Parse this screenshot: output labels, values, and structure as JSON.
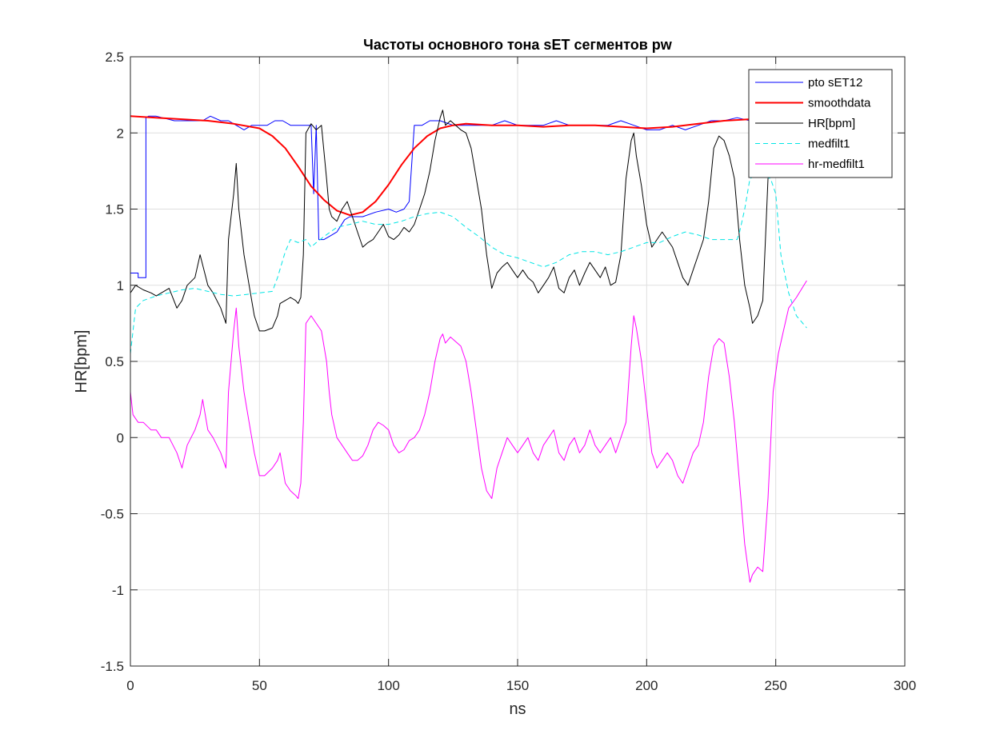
{
  "chart_data": {
    "type": "line",
    "title": "Частоты основного тона sET сегментов pw",
    "xlabel": "ns",
    "ylabel": "HR[bpm]",
    "xlim": [
      0,
      300
    ],
    "ylim": [
      -1.5,
      2.5
    ],
    "xticks": [
      0,
      50,
      100,
      150,
      200,
      250,
      300
    ],
    "yticks": [
      -1.5,
      -1,
      -0.5,
      0,
      0.5,
      1,
      1.5,
      2,
      2.5
    ],
    "xtick_labels": [
      "0",
      "50",
      "100",
      "150",
      "200",
      "250",
      "300"
    ],
    "ytick_labels": [
      "-1.5",
      "-1",
      "-0.5",
      "0",
      "0.5",
      "1",
      "1.5",
      "2",
      "2.5"
    ],
    "grid": true,
    "legend_position": "top-right",
    "series": [
      {
        "name": "pto sET12",
        "color": "#0000ff",
        "style": "solid",
        "x": [
          0,
          3,
          3,
          6,
          6,
          7,
          10,
          17,
          25,
          28,
          31,
          35,
          38,
          41,
          44,
          47,
          50,
          53,
          56,
          59,
          62,
          65,
          68,
          70,
          71,
          72,
          73,
          75,
          78,
          80,
          83,
          85,
          90,
          95,
          100,
          103,
          106,
          108,
          110,
          113,
          116,
          120,
          125,
          130,
          135,
          140,
          145,
          150,
          155,
          160,
          165,
          170,
          175,
          180,
          185,
          190,
          195,
          200,
          205,
          210,
          215,
          220,
          225,
          230,
          235,
          240,
          245,
          248
        ],
        "y": [
          1.08,
          1.08,
          1.05,
          1.05,
          2.1,
          2.11,
          2.11,
          2.08,
          2.08,
          2.08,
          2.11,
          2.08,
          2.08,
          2.05,
          2.02,
          2.05,
          2.05,
          2.05,
          2.08,
          2.08,
          2.05,
          2.05,
          2.05,
          2.05,
          1.6,
          2.05,
          1.3,
          1.3,
          1.33,
          1.35,
          1.43,
          1.45,
          1.45,
          1.48,
          1.5,
          1.48,
          1.5,
          1.55,
          2.05,
          2.05,
          2.08,
          2.08,
          2.05,
          2.05,
          2.05,
          2.05,
          2.08,
          2.05,
          2.05,
          2.05,
          2.08,
          2.05,
          2.05,
          2.05,
          2.05,
          2.08,
          2.05,
          2.02,
          2.02,
          2.05,
          2.02,
          2.05,
          2.08,
          2.08,
          2.1,
          2.08,
          2.08,
          2.08
        ]
      },
      {
        "name": "smoothdata",
        "color": "#ff0000",
        "style": "solid",
        "x": [
          0,
          10,
          20,
          30,
          40,
          50,
          55,
          60,
          65,
          70,
          75,
          80,
          85,
          90,
          95,
          100,
          105,
          110,
          115,
          120,
          125,
          130,
          140,
          150,
          160,
          170,
          180,
          190,
          200,
          210,
          220,
          230,
          240,
          248
        ],
        "y": [
          2.11,
          2.1,
          2.09,
          2.08,
          2.06,
          2.03,
          1.98,
          1.9,
          1.78,
          1.65,
          1.56,
          1.49,
          1.46,
          1.48,
          1.55,
          1.66,
          1.79,
          1.9,
          1.98,
          2.03,
          2.05,
          2.06,
          2.05,
          2.05,
          2.04,
          2.05,
          2.05,
          2.04,
          2.03,
          2.04,
          2.06,
          2.08,
          2.09,
          2.09
        ]
      },
      {
        "name": "HR[bpm]",
        "color": "#000000",
        "style": "solid",
        "x": [
          0,
          2,
          5,
          8,
          10,
          12,
          15,
          18,
          20,
          22,
          25,
          27,
          30,
          32,
          35,
          37,
          38,
          40,
          41,
          42,
          44,
          46,
          48,
          50,
          52,
          55,
          57,
          58,
          60,
          62,
          64,
          65,
          66,
          67,
          68,
          70,
          72,
          74,
          76,
          77,
          78,
          80,
          82,
          84,
          86,
          88,
          90,
          92,
          94,
          96,
          98,
          100,
          102,
          104,
          106,
          108,
          110,
          112,
          114,
          116,
          118,
          120,
          121,
          122,
          124,
          126,
          128,
          130,
          132,
          134,
          136,
          138,
          140,
          142,
          144,
          146,
          148,
          150,
          152,
          154,
          156,
          158,
          160,
          162,
          164,
          166,
          168,
          170,
          172,
          174,
          176,
          178,
          180,
          182,
          184,
          186,
          188,
          190,
          192,
          194,
          195,
          196,
          198,
          200,
          202,
          204,
          206,
          208,
          210,
          212,
          214,
          216,
          218,
          220,
          222,
          224,
          226,
          228,
          230,
          232,
          234,
          236,
          238,
          240,
          241,
          243,
          245,
          246,
          247,
          248
        ],
        "y": [
          0.95,
          1.0,
          0.97,
          0.95,
          0.93,
          0.95,
          0.98,
          0.85,
          0.9,
          1.0,
          1.05,
          1.2,
          1.0,
          0.95,
          0.85,
          0.75,
          1.3,
          1.6,
          1.8,
          1.5,
          1.2,
          1.0,
          0.8,
          0.7,
          0.7,
          0.72,
          0.8,
          0.88,
          0.9,
          0.92,
          0.9,
          0.88,
          0.92,
          1.2,
          2.0,
          2.06,
          2.02,
          2.05,
          1.7,
          1.5,
          1.45,
          1.42,
          1.5,
          1.55,
          1.45,
          1.35,
          1.25,
          1.28,
          1.3,
          1.35,
          1.4,
          1.32,
          1.3,
          1.33,
          1.38,
          1.35,
          1.4,
          1.5,
          1.6,
          1.75,
          1.95,
          2.1,
          2.15,
          2.05,
          2.08,
          2.05,
          2.02,
          2.0,
          1.9,
          1.7,
          1.5,
          1.2,
          0.98,
          1.08,
          1.12,
          1.15,
          1.1,
          1.05,
          1.1,
          1.05,
          1.02,
          0.95,
          1.0,
          1.05,
          1.12,
          0.98,
          0.95,
          1.05,
          1.1,
          1.0,
          1.08,
          1.15,
          1.1,
          1.05,
          1.12,
          1.0,
          1.02,
          1.2,
          1.7,
          1.95,
          2.0,
          1.85,
          1.65,
          1.4,
          1.25,
          1.3,
          1.35,
          1.3,
          1.25,
          1.15,
          1.05,
          1.0,
          1.1,
          1.2,
          1.3,
          1.55,
          1.9,
          1.98,
          1.95,
          1.85,
          1.7,
          1.3,
          1.0,
          0.85,
          0.75,
          0.8,
          0.9,
          1.3,
          1.7,
          1.75
        ]
      },
      {
        "name": "medfilt1",
        "color": "#00e5e5",
        "style": "dashed",
        "x": [
          0,
          2,
          5,
          10,
          15,
          20,
          25,
          30,
          35,
          40,
          45,
          50,
          55,
          57,
          60,
          62,
          65,
          68,
          70,
          72,
          75,
          80,
          85,
          90,
          95,
          100,
          105,
          110,
          115,
          120,
          125,
          130,
          135,
          140,
          145,
          150,
          155,
          160,
          165,
          170,
          175,
          180,
          185,
          190,
          195,
          200,
          205,
          210,
          215,
          220,
          225,
          230,
          235,
          236,
          238,
          240,
          242,
          245,
          248,
          250,
          252,
          255,
          258,
          262
        ],
        "y": [
          0.55,
          0.85,
          0.9,
          0.93,
          0.95,
          0.97,
          0.98,
          0.96,
          0.94,
          0.93,
          0.94,
          0.95,
          0.96,
          1.05,
          1.22,
          1.3,
          1.28,
          1.3,
          1.25,
          1.28,
          1.32,
          1.38,
          1.4,
          1.42,
          1.4,
          1.4,
          1.42,
          1.45,
          1.47,
          1.48,
          1.45,
          1.38,
          1.32,
          1.25,
          1.2,
          1.18,
          1.15,
          1.12,
          1.15,
          1.2,
          1.22,
          1.22,
          1.2,
          1.22,
          1.25,
          1.28,
          1.28,
          1.32,
          1.35,
          1.33,
          1.3,
          1.3,
          1.3,
          1.35,
          1.5,
          1.7,
          1.72,
          1.72,
          1.7,
          1.6,
          1.2,
          0.95,
          0.8,
          0.72
        ]
      },
      {
        "name": "hr-medfilt1",
        "color": "#ff00ff",
        "style": "solid",
        "x": [
          0,
          1,
          3,
          5,
          8,
          10,
          12,
          15,
          18,
          20,
          22,
          25,
          27,
          28,
          30,
          32,
          35,
          37,
          38,
          40,
          41,
          42,
          44,
          46,
          48,
          50,
          52,
          55,
          57,
          58,
          60,
          62,
          64,
          65,
          66,
          67,
          68,
          70,
          72,
          74,
          76,
          77,
          78,
          80,
          82,
          84,
          86,
          88,
          90,
          92,
          94,
          96,
          98,
          100,
          102,
          104,
          106,
          108,
          110,
          112,
          114,
          116,
          118,
          120,
          121,
          122,
          124,
          126,
          128,
          130,
          132,
          134,
          136,
          138,
          140,
          142,
          144,
          146,
          148,
          150,
          152,
          154,
          156,
          158,
          160,
          162,
          164,
          166,
          168,
          170,
          172,
          174,
          176,
          178,
          180,
          182,
          184,
          186,
          188,
          190,
          192,
          194,
          195,
          196,
          198,
          200,
          202,
          204,
          206,
          208,
          210,
          212,
          214,
          216,
          218,
          220,
          222,
          224,
          226,
          228,
          230,
          232,
          234,
          236,
          238,
          240,
          241,
          243,
          245,
          247,
          249,
          251,
          253,
          255,
          258,
          262
        ],
        "y": [
          0.3,
          0.15,
          0.1,
          0.1,
          0.05,
          0.05,
          0.0,
          0.0,
          -0.1,
          -0.2,
          -0.05,
          0.05,
          0.15,
          0.25,
          0.05,
          0.0,
          -0.1,
          -0.2,
          0.3,
          0.7,
          0.85,
          0.6,
          0.3,
          0.1,
          -0.1,
          -0.25,
          -0.25,
          -0.2,
          -0.15,
          -0.1,
          -0.3,
          -0.35,
          -0.38,
          -0.4,
          -0.3,
          0.1,
          0.75,
          0.8,
          0.75,
          0.7,
          0.5,
          0.3,
          0.15,
          0.0,
          -0.05,
          -0.1,
          -0.15,
          -0.15,
          -0.12,
          -0.05,
          0.05,
          0.1,
          0.08,
          0.05,
          -0.05,
          -0.1,
          -0.08,
          -0.02,
          0.0,
          0.05,
          0.15,
          0.3,
          0.5,
          0.65,
          0.68,
          0.62,
          0.66,
          0.63,
          0.6,
          0.5,
          0.3,
          0.05,
          -0.2,
          -0.35,
          -0.4,
          -0.2,
          -0.1,
          0.0,
          -0.05,
          -0.1,
          -0.05,
          0.0,
          -0.1,
          -0.15,
          -0.05,
          0.0,
          0.05,
          -0.1,
          -0.15,
          -0.05,
          0.0,
          -0.1,
          -0.05,
          0.05,
          -0.05,
          -0.1,
          -0.05,
          0.0,
          -0.1,
          0.0,
          0.1,
          0.6,
          0.8,
          0.72,
          0.5,
          0.2,
          -0.1,
          -0.2,
          -0.15,
          -0.1,
          -0.15,
          -0.25,
          -0.3,
          -0.2,
          -0.1,
          -0.05,
          0.1,
          0.4,
          0.6,
          0.65,
          0.62,
          0.4,
          0.1,
          -0.3,
          -0.7,
          -0.95,
          -0.9,
          -0.85,
          -0.88,
          -0.4,
          0.3,
          0.55,
          0.7,
          0.85,
          0.92,
          1.03
        ]
      }
    ]
  }
}
